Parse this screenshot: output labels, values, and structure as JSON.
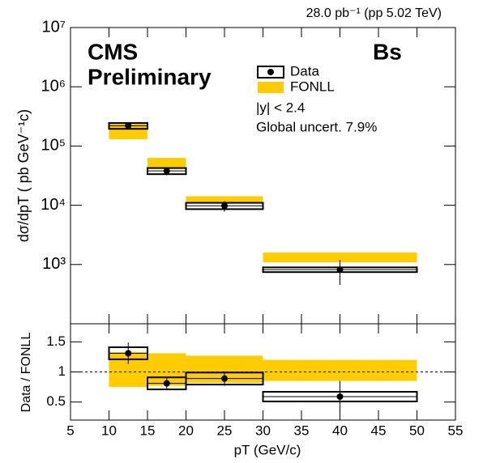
{
  "chart_data": [
    {
      "type": "errorbar",
      "title": "28.0 pb⁻¹ (pp 5.02 TeV)",
      "annotations": [
        "CMS",
        "Preliminary",
        "Bs",
        "|y| < 2.4",
        "Global uncert. 7.9%"
      ],
      "ylabel": "dσ/dpT ( pb GeV⁻¹c)",
      "log_y": true,
      "xlim": [
        5,
        55
      ],
      "ylim": [
        100,
        10000000
      ],
      "yticks": [
        {
          "value": 1000,
          "label": "10³"
        },
        {
          "value": 10000,
          "label": "10⁴"
        },
        {
          "value": 100000,
          "label": "10⁵"
        },
        {
          "value": 1000000,
          "label": "10⁶"
        },
        {
          "value": 10000000,
          "label": "10⁷"
        }
      ],
      "bins": [
        10,
        15,
        20,
        30,
        50
      ],
      "x": [
        12.5,
        17.5,
        25,
        40
      ],
      "series": [
        {
          "name": "Data",
          "color": "#000000",
          "values": [
            220000,
            38000,
            9800,
            820
          ],
          "errors": [
            20000,
            6000,
            2000,
            370
          ],
          "syst": [
            25000,
            4500,
            1200,
            75
          ]
        },
        {
          "name": "FONLL",
          "color": "#ffcc00",
          "lower": [
            130000,
            43000,
            11000,
            1090
          ],
          "upper": [
            240000,
            63000,
            14200,
            1600
          ]
        }
      ]
    },
    {
      "type": "errorbar",
      "ylabel": "Data / FONLL",
      "xlabel": "pT (GeV/c)",
      "xlim": [
        5,
        55
      ],
      "xticks": [
        5,
        10,
        15,
        20,
        25,
        30,
        35,
        40,
        45,
        50,
        55
      ],
      "ylim": [
        0.2,
        1.8
      ],
      "yticks": [
        0.5,
        1,
        {
          "value": 1.5,
          "label": "1.5"
        }
      ],
      "bins": [
        10,
        15,
        20,
        30,
        50
      ],
      "x": [
        12.5,
        17.5,
        25,
        40
      ],
      "series": [
        {
          "name": "Data",
          "color": "#000000",
          "values": [
            1.31,
            0.81,
            0.89,
            0.59
          ],
          "errors": [
            0.18,
            0.1,
            0.12,
            0.26
          ],
          "syst": [
            0.1,
            0.1,
            0.1,
            0.08
          ]
        },
        {
          "name": "FONLL",
          "color": "#ffcc00",
          "lower": [
            0.75,
            0.77,
            0.82,
            0.85
          ],
          "upper": [
            1.33,
            1.31,
            1.27,
            1.2
          ]
        }
      ]
    }
  ]
}
